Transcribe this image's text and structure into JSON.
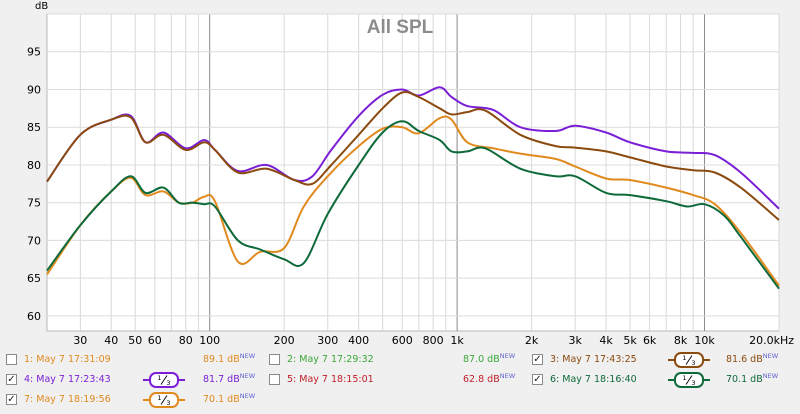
{
  "chart_data": {
    "type": "line",
    "title": "All SPL",
    "ylabel": "dB",
    "x_scale": "log",
    "xlim": [
      22,
      20000
    ],
    "ylim": [
      58,
      100
    ],
    "y_ticks": [
      60,
      65,
      70,
      75,
      80,
      85,
      90,
      95
    ],
    "x_ticks": [
      {
        "value": 30,
        "label": "30"
      },
      {
        "value": 40,
        "label": "40"
      },
      {
        "value": 50,
        "label": "50"
      },
      {
        "value": 60,
        "label": "60"
      },
      {
        "value": 80,
        "label": "80"
      },
      {
        "value": 100,
        "label": "100"
      },
      {
        "value": 200,
        "label": "200"
      },
      {
        "value": 300,
        "label": "300"
      },
      {
        "value": 400,
        "label": "400"
      },
      {
        "value": 600,
        "label": "600"
      },
      {
        "value": 800,
        "label": "800"
      },
      {
        "value": 1000,
        "label": "1k"
      },
      {
        "value": 2000,
        "label": "2k"
      },
      {
        "value": 3000,
        "label": "3k"
      },
      {
        "value": 4000,
        "label": "4k"
      },
      {
        "value": 5000,
        "label": "5k"
      },
      {
        "value": 6000,
        "label": "6k"
      },
      {
        "value": 8000,
        "label": "8k"
      },
      {
        "value": 10000,
        "label": "10k"
      },
      {
        "value": 20000,
        "label": "20.0kHz"
      }
    ],
    "grid": true,
    "series": [
      {
        "name": "4: May 7 17:23:43",
        "color": "#7a1fd6",
        "points": [
          [
            22,
            77.8
          ],
          [
            30,
            84
          ],
          [
            40,
            86
          ],
          [
            48,
            86.5
          ],
          [
            55,
            83
          ],
          [
            65,
            84.3
          ],
          [
            80,
            82.2
          ],
          [
            95,
            83.3
          ],
          [
            105,
            82
          ],
          [
            130,
            79.2
          ],
          [
            170,
            80
          ],
          [
            220,
            78
          ],
          [
            260,
            78.5
          ],
          [
            310,
            82
          ],
          [
            400,
            86.5
          ],
          [
            500,
            89.3
          ],
          [
            600,
            90
          ],
          [
            700,
            89.2
          ],
          [
            850,
            90.3
          ],
          [
            950,
            89
          ],
          [
            1100,
            87.8
          ],
          [
            1400,
            87.3
          ],
          [
            1800,
            85
          ],
          [
            2500,
            84.5
          ],
          [
            3000,
            85.2
          ],
          [
            4000,
            84.3
          ],
          [
            5000,
            83
          ],
          [
            7000,
            81.8
          ],
          [
            9000,
            81.6
          ],
          [
            11000,
            81.3
          ],
          [
            14000,
            79
          ],
          [
            20000,
            74.2
          ]
        ]
      },
      {
        "name": "3: May 7 17:43:25",
        "color": "#8b4a0e",
        "points": [
          [
            22,
            77.8
          ],
          [
            30,
            84
          ],
          [
            40,
            86
          ],
          [
            48,
            86.3
          ],
          [
            55,
            83
          ],
          [
            65,
            84
          ],
          [
            80,
            82
          ],
          [
            95,
            83
          ],
          [
            105,
            82
          ],
          [
            130,
            79
          ],
          [
            170,
            79.5
          ],
          [
            220,
            78
          ],
          [
            260,
            77.5
          ],
          [
            310,
            80
          ],
          [
            400,
            84
          ],
          [
            500,
            87.5
          ],
          [
            600,
            89.6
          ],
          [
            700,
            89
          ],
          [
            850,
            87.5
          ],
          [
            950,
            86.7
          ],
          [
            1100,
            87
          ],
          [
            1300,
            87.2
          ],
          [
            1800,
            84
          ],
          [
            2500,
            82.5
          ],
          [
            3000,
            82.3
          ],
          [
            4000,
            81.8
          ],
          [
            5000,
            81
          ],
          [
            7000,
            79.8
          ],
          [
            9000,
            79.3
          ],
          [
            11000,
            79
          ],
          [
            14000,
            77
          ],
          [
            20000,
            72.7
          ]
        ]
      },
      {
        "name": "7: May 7 18:19:56",
        "color": "#e08a1e",
        "points": [
          [
            22,
            65.5
          ],
          [
            30,
            72
          ],
          [
            40,
            76.5
          ],
          [
            48,
            78.3
          ],
          [
            55,
            76
          ],
          [
            65,
            76.5
          ],
          [
            75,
            75
          ],
          [
            85,
            75
          ],
          [
            95,
            75.8
          ],
          [
            105,
            75.2
          ],
          [
            130,
            67.2
          ],
          [
            160,
            68.5
          ],
          [
            200,
            69
          ],
          [
            240,
            74.5
          ],
          [
            300,
            78.5
          ],
          [
            400,
            82.5
          ],
          [
            500,
            84.8
          ],
          [
            600,
            85
          ],
          [
            700,
            84.2
          ],
          [
            850,
            86.2
          ],
          [
            950,
            86
          ],
          [
            1100,
            83
          ],
          [
            1400,
            82.2
          ],
          [
            1800,
            81.5
          ],
          [
            2500,
            80.8
          ],
          [
            3000,
            79.8
          ],
          [
            4000,
            78.2
          ],
          [
            5000,
            78
          ],
          [
            7000,
            77
          ],
          [
            9000,
            76
          ],
          [
            11000,
            74.8
          ],
          [
            14000,
            71
          ],
          [
            20000,
            64
          ]
        ]
      },
      {
        "name": "6: May 7 18:16:40",
        "color": "#0e6a3a",
        "points": [
          [
            22,
            66
          ],
          [
            30,
            72
          ],
          [
            40,
            76.5
          ],
          [
            48,
            78.5
          ],
          [
            55,
            76.3
          ],
          [
            65,
            77
          ],
          [
            75,
            75
          ],
          [
            85,
            75
          ],
          [
            95,
            74.8
          ],
          [
            105,
            74.5
          ],
          [
            130,
            70
          ],
          [
            160,
            68.8
          ],
          [
            200,
            67.5
          ],
          [
            240,
            67
          ],
          [
            300,
            73.5
          ],
          [
            400,
            80
          ],
          [
            500,
            84.3
          ],
          [
            600,
            85.8
          ],
          [
            700,
            84.5
          ],
          [
            850,
            83.3
          ],
          [
            950,
            81.8
          ],
          [
            1100,
            81.8
          ],
          [
            1300,
            82.2
          ],
          [
            1800,
            79.5
          ],
          [
            2500,
            78.5
          ],
          [
            3000,
            78.5
          ],
          [
            4000,
            76.3
          ],
          [
            5000,
            76
          ],
          [
            7000,
            75.2
          ],
          [
            8500,
            74.5
          ],
          [
            10000,
            74.8
          ],
          [
            12000,
            73.3
          ],
          [
            14000,
            70.5
          ],
          [
            20000,
            63.6
          ]
        ]
      }
    ]
  },
  "legend": [
    {
      "label": "1: May 7 17:31:09",
      "checked": false,
      "color": "#e08a1e",
      "value": "89.1 dB",
      "new": "NEW",
      "smoothing": ""
    },
    {
      "label": "2: May 7 17:29:32",
      "checked": false,
      "color": "#3aa83a",
      "value": "87.0 dB",
      "new": "NEW",
      "smoothing": ""
    },
    {
      "label": "3: May 7 17:43:25",
      "checked": true,
      "color": "#8b4a0e",
      "value": "81.6 dB",
      "new": "NEW",
      "smoothing": "1/3"
    },
    {
      "label": "4: May 7 17:23:43",
      "checked": true,
      "color": "#7a1fd6",
      "value": "81.7 dB",
      "new": "NEW",
      "smoothing": "1/3"
    },
    {
      "label": "5: May 7 18:15:01",
      "checked": false,
      "color": "#c0202a",
      "value": "62.8 dB",
      "new": "NEW",
      "smoothing": ""
    },
    {
      "label": "6: May 7 18:16:40",
      "checked": true,
      "color": "#0e6a3a",
      "value": "70.1 dB",
      "new": "NEW",
      "smoothing": "1/3"
    },
    {
      "label": "7: May 7 18:19:56",
      "checked": true,
      "color": "#e08a1e",
      "value": "70.1 dB",
      "new": "NEW",
      "smoothing": "1/3"
    }
  ],
  "check_glyph": "✓"
}
